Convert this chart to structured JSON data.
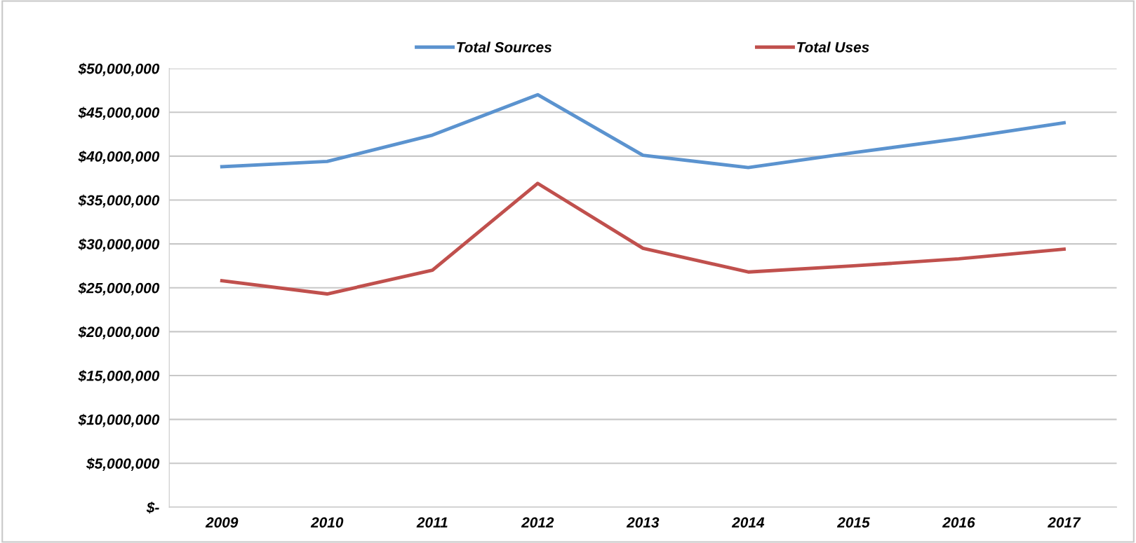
{
  "chart_data": {
    "type": "line",
    "categories": [
      "2009",
      "2010",
      "2011",
      "2012",
      "2013",
      "2014",
      "2015",
      "2016",
      "2017"
    ],
    "series": [
      {
        "name": "Total Sources",
        "color": "#5b93cf",
        "values": [
          38800000,
          39400000,
          42400000,
          47000000,
          40100000,
          38700000,
          40400000,
          42000000,
          43800000
        ]
      },
      {
        "name": "Total Uses",
        "color": "#c0504d",
        "values": [
          25800000,
          24300000,
          27000000,
          36900000,
          29500000,
          26800000,
          27500000,
          28300000,
          29400000
        ]
      }
    ],
    "ylim": [
      0,
      50000000
    ],
    "yticks": [
      {
        "value": 0,
        "label": "$-"
      },
      {
        "value": 5000000,
        "label": "$5,000,000"
      },
      {
        "value": 10000000,
        "label": "$10,000,000"
      },
      {
        "value": 15000000,
        "label": "$15,000,000"
      },
      {
        "value": 20000000,
        "label": "$20,000,000"
      },
      {
        "value": 25000000,
        "label": "$25,000,000"
      },
      {
        "value": 30000000,
        "label": "$30,000,000"
      },
      {
        "value": 35000000,
        "label": "$35,000,000"
      },
      {
        "value": 40000000,
        "label": "$40,000,000"
      },
      {
        "value": 45000000,
        "label": "$45,000,000"
      },
      {
        "value": 50000000,
        "label": "$50,000,000"
      }
    ],
    "grid": "y",
    "legend": "top",
    "marker": "none",
    "line_style": "solid"
  }
}
